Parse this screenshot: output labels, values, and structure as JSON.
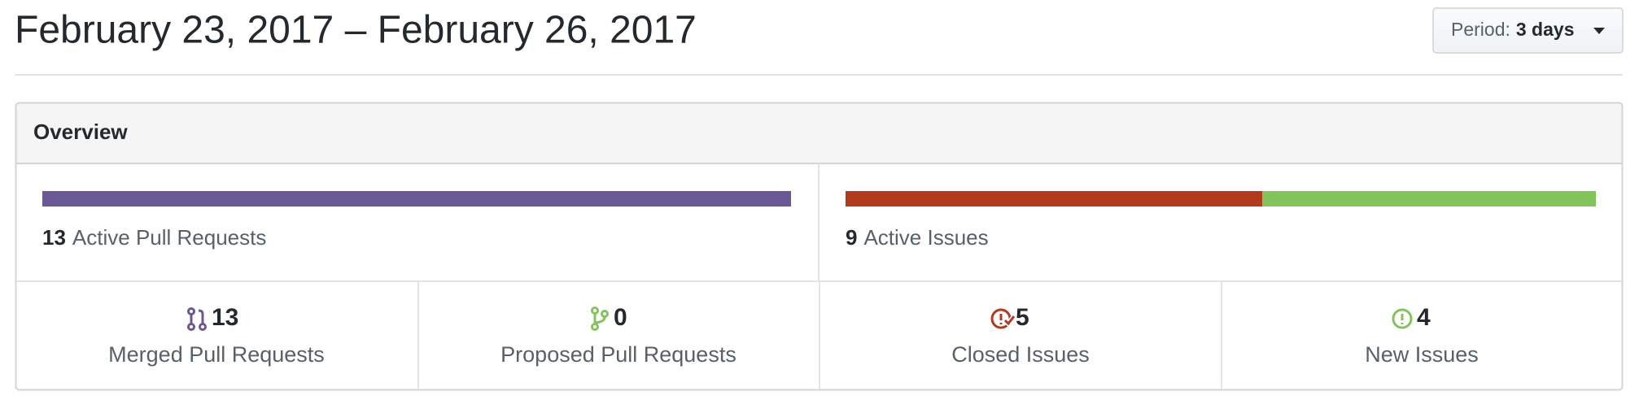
{
  "header": {
    "title": "February 23, 2017 – February 26, 2017",
    "period_label": "Period:",
    "period_value": "3 days"
  },
  "overview": {
    "title": "Overview",
    "pull_requests": {
      "count": 13,
      "label": "Active Pull Requests"
    },
    "issues": {
      "count": 9,
      "label": "Active Issues"
    },
    "stats": [
      {
        "count": 13,
        "label": "Merged Pull Requests",
        "color": "#6a5894"
      },
      {
        "count": 0,
        "label": "Proposed Pull Requests",
        "color": "#83c45a"
      },
      {
        "count": 5,
        "label": "Closed Issues",
        "color": "#b13a1f"
      },
      {
        "count": 4,
        "label": "New Issues",
        "color": "#83c45a"
      }
    ]
  }
}
